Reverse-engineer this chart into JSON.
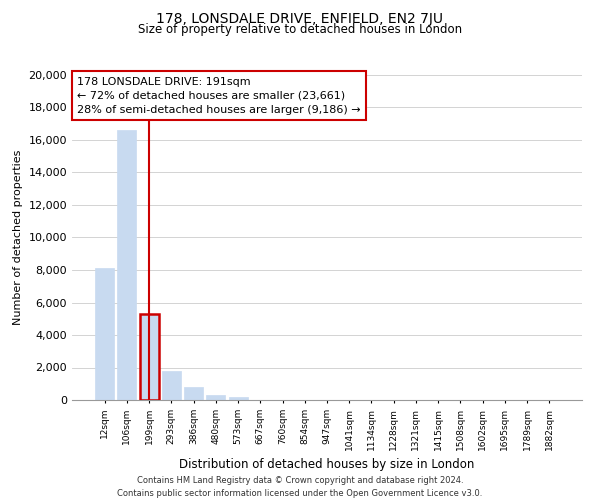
{
  "title": "178, LONSDALE DRIVE, ENFIELD, EN2 7JU",
  "subtitle": "Size of property relative to detached houses in London",
  "xlabel": "Distribution of detached houses by size in London",
  "ylabel": "Number of detached properties",
  "bar_labels": [
    "12sqm",
    "106sqm",
    "199sqm",
    "293sqm",
    "386sqm",
    "480sqm",
    "573sqm",
    "667sqm",
    "760sqm",
    "854sqm",
    "947sqm",
    "1041sqm",
    "1134sqm",
    "1228sqm",
    "1321sqm",
    "1415sqm",
    "1508sqm",
    "1602sqm",
    "1695sqm",
    "1789sqm",
    "1882sqm"
  ],
  "bar_heights": [
    8100,
    16600,
    5300,
    1800,
    800,
    300,
    200,
    0,
    0,
    0,
    0,
    0,
    0,
    0,
    0,
    0,
    0,
    0,
    0,
    0,
    0
  ],
  "bar_color": "#c8daf0",
  "marker_bar_index": 2,
  "marker_color": "#cc0000",
  "ylim": [
    0,
    20000
  ],
  "yticks": [
    0,
    2000,
    4000,
    6000,
    8000,
    10000,
    12000,
    14000,
    16000,
    18000,
    20000
  ],
  "annotation_title": "178 LONSDALE DRIVE: 191sqm",
  "annotation_line1": "← 72% of detached houses are smaller (23,661)",
  "annotation_line2": "28% of semi-detached houses are larger (9,186) →",
  "footer_line1": "Contains HM Land Registry data © Crown copyright and database right 2024.",
  "footer_line2": "Contains public sector information licensed under the Open Government Licence v3.0.",
  "background_color": "#ffffff",
  "grid_color": "#cccccc"
}
